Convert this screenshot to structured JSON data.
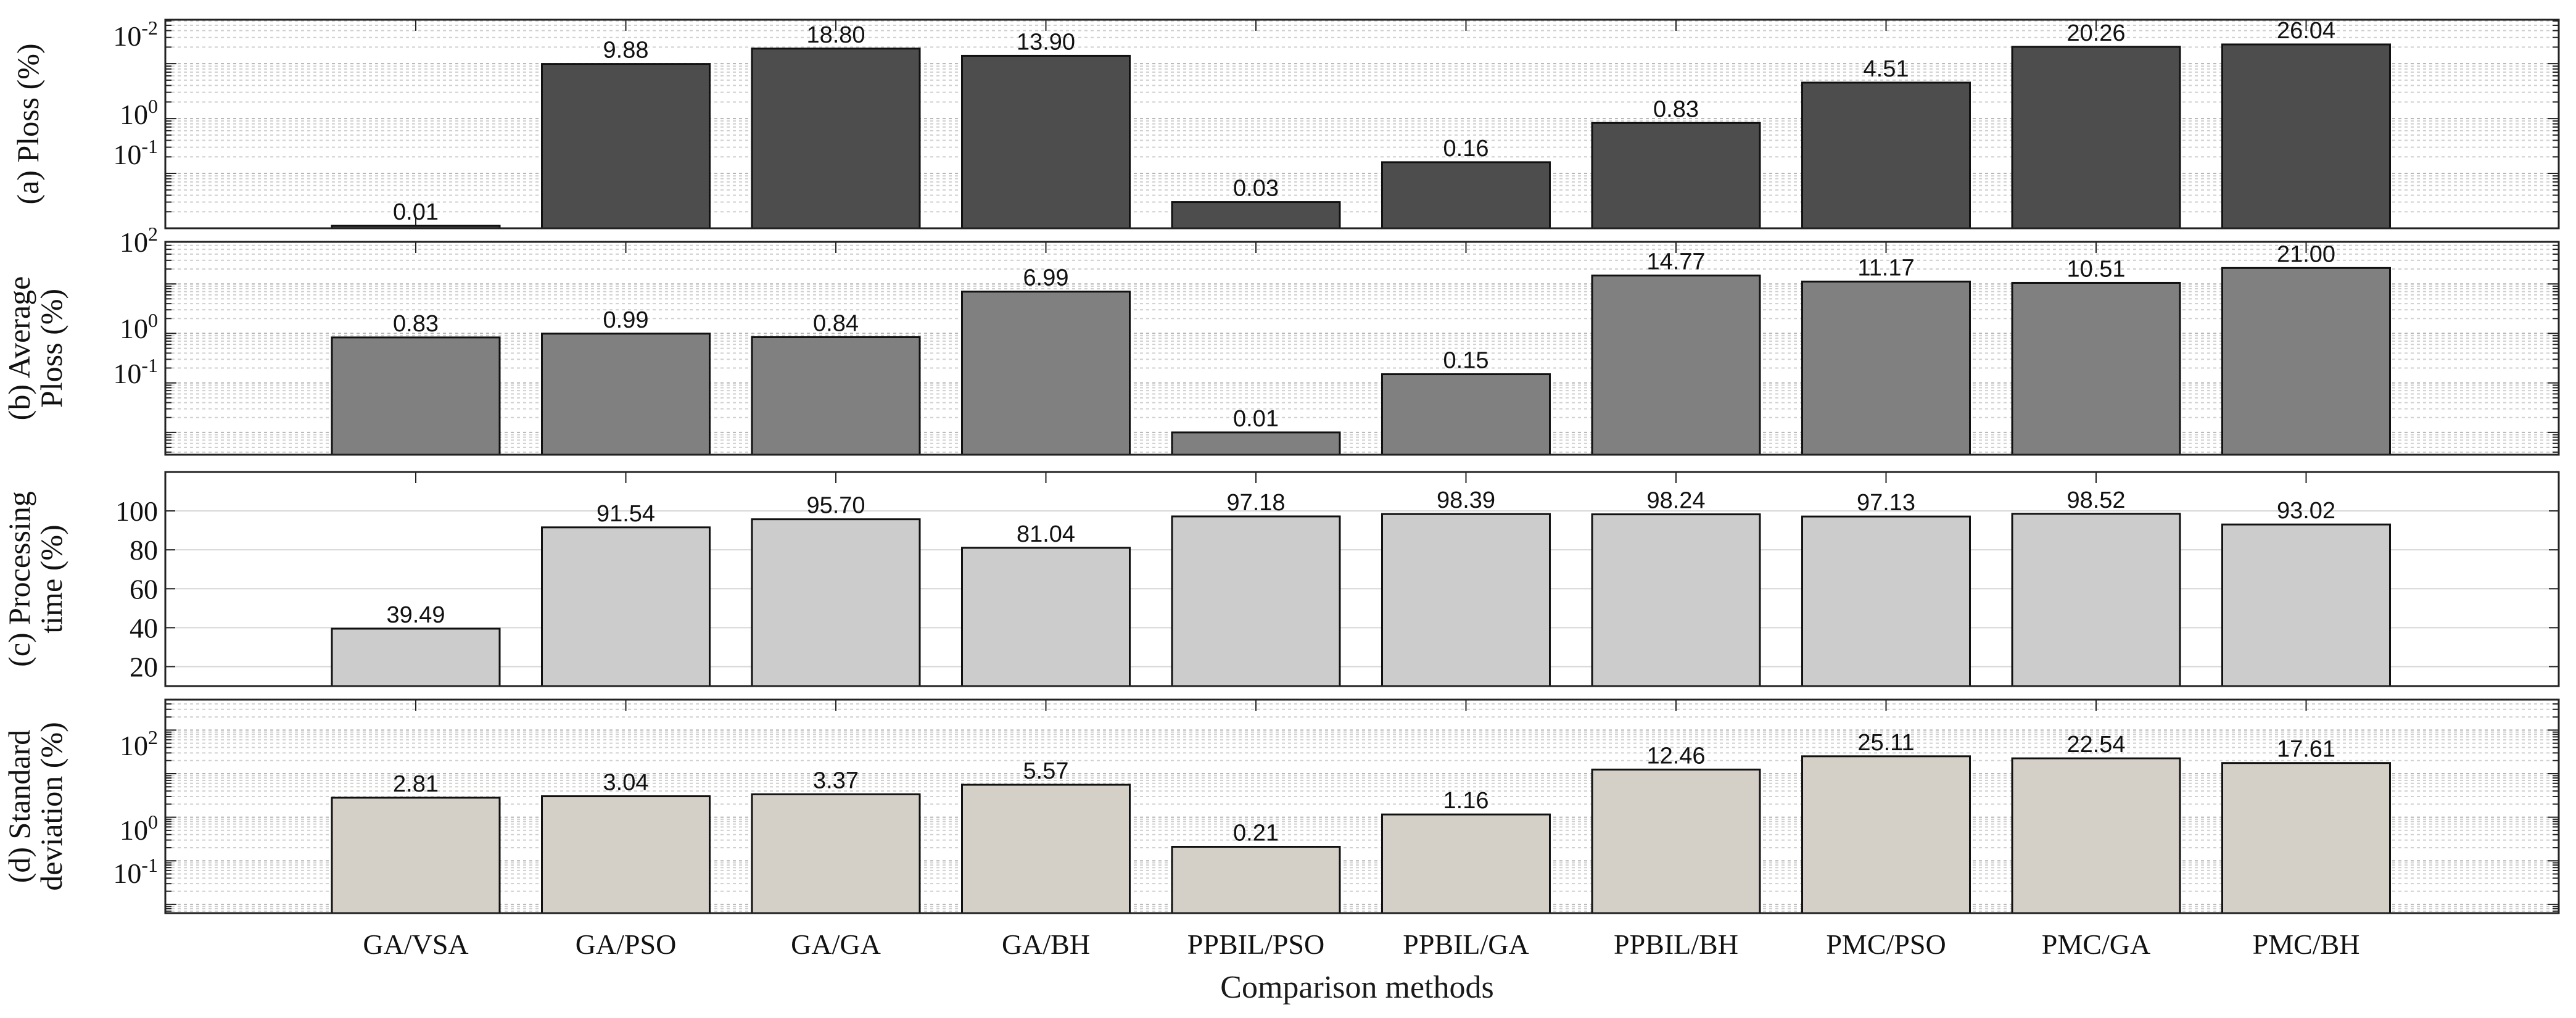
{
  "xlabel": "Comparison methods",
  "categories": [
    "GA/VSA",
    "GA/PSO",
    "GA/GA",
    "GA/BH",
    "PPBIL/PSO",
    "PPBIL/GA",
    "PPBIL/BH",
    "PMC/PSO",
    "PMC/GA",
    "PMC/BH"
  ],
  "chart_data": [
    {
      "type": "bar",
      "panel": "a",
      "ylabel_lines": [
        "(a) Ploss (%)"
      ],
      "yticks": [
        {
          "base": "10",
          "exp": "-2"
        },
        {
          "base": "10",
          "exp": "0"
        },
        {
          "base": "10",
          "exp": "-1"
        }
      ],
      "values": [
        0.01,
        9.88,
        18.8,
        13.9,
        0.03,
        0.16,
        0.83,
        4.51,
        20.26,
        26.04
      ],
      "labels": [
        "0.01",
        "9.88",
        "18.80",
        "13.90",
        "0.03",
        "0.16",
        "0.83",
        "4.51",
        "20.26",
        "26.04"
      ],
      "bar_color": "#4d4d4d"
    },
    {
      "type": "bar",
      "panel": "b",
      "ylabel_lines": [
        "(b) Average",
        "Ploss  (%)"
      ],
      "yticks": [
        {
          "base": "10",
          "exp": "2"
        },
        {
          "base": "10",
          "exp": "0"
        },
        {
          "base": "10",
          "exp": "-1"
        }
      ],
      "values": [
        0.83,
        0.99,
        0.84,
        6.99,
        0.01,
        0.15,
        14.77,
        11.17,
        10.51,
        21.0
      ],
      "labels": [
        "0.83",
        "0.99",
        "0.84",
        "6.99",
        "0.01",
        "0.15",
        "14.77",
        "11.17",
        "10.51",
        "21.00"
      ],
      "bar_color": "#808080"
    },
    {
      "type": "bar",
      "panel": "c",
      "ylabel_lines": [
        "(c) Processing",
        "time (%)"
      ],
      "yticks": [
        {
          "base": "100",
          "exp": ""
        },
        {
          "base": "80",
          "exp": ""
        },
        {
          "base": "60",
          "exp": ""
        },
        {
          "base": "40",
          "exp": ""
        },
        {
          "base": "20",
          "exp": ""
        }
      ],
      "values": [
        39.49,
        91.54,
        95.7,
        81.04,
        97.18,
        98.39,
        98.24,
        97.13,
        98.52,
        93.02
      ],
      "labels": [
        "39.49",
        "91.54",
        "95.70",
        "81.04",
        "97.18",
        "98.39",
        "98.24",
        "97.13",
        "98.52",
        "93.02"
      ],
      "ylim": [
        10,
        120
      ],
      "bar_color": "#cccccc"
    },
    {
      "type": "bar",
      "panel": "d",
      "ylabel_lines": [
        "(d) Standard",
        "deviation (%)"
      ],
      "yticks": [
        {
          "base": "10",
          "exp": "2"
        },
        {
          "base": "10",
          "exp": "0"
        },
        {
          "base": "10",
          "exp": "-1"
        }
      ],
      "values": [
        2.81,
        3.04,
        3.37,
        5.57,
        0.21,
        1.16,
        12.46,
        25.11,
        22.54,
        17.61
      ],
      "labels": [
        "2.81",
        "3.04",
        "3.37",
        "5.57",
        "0.21",
        "1.16",
        "12.46",
        "25.11",
        "22.54",
        "17.61"
      ],
      "bar_color": "#d4d0c8"
    }
  ]
}
